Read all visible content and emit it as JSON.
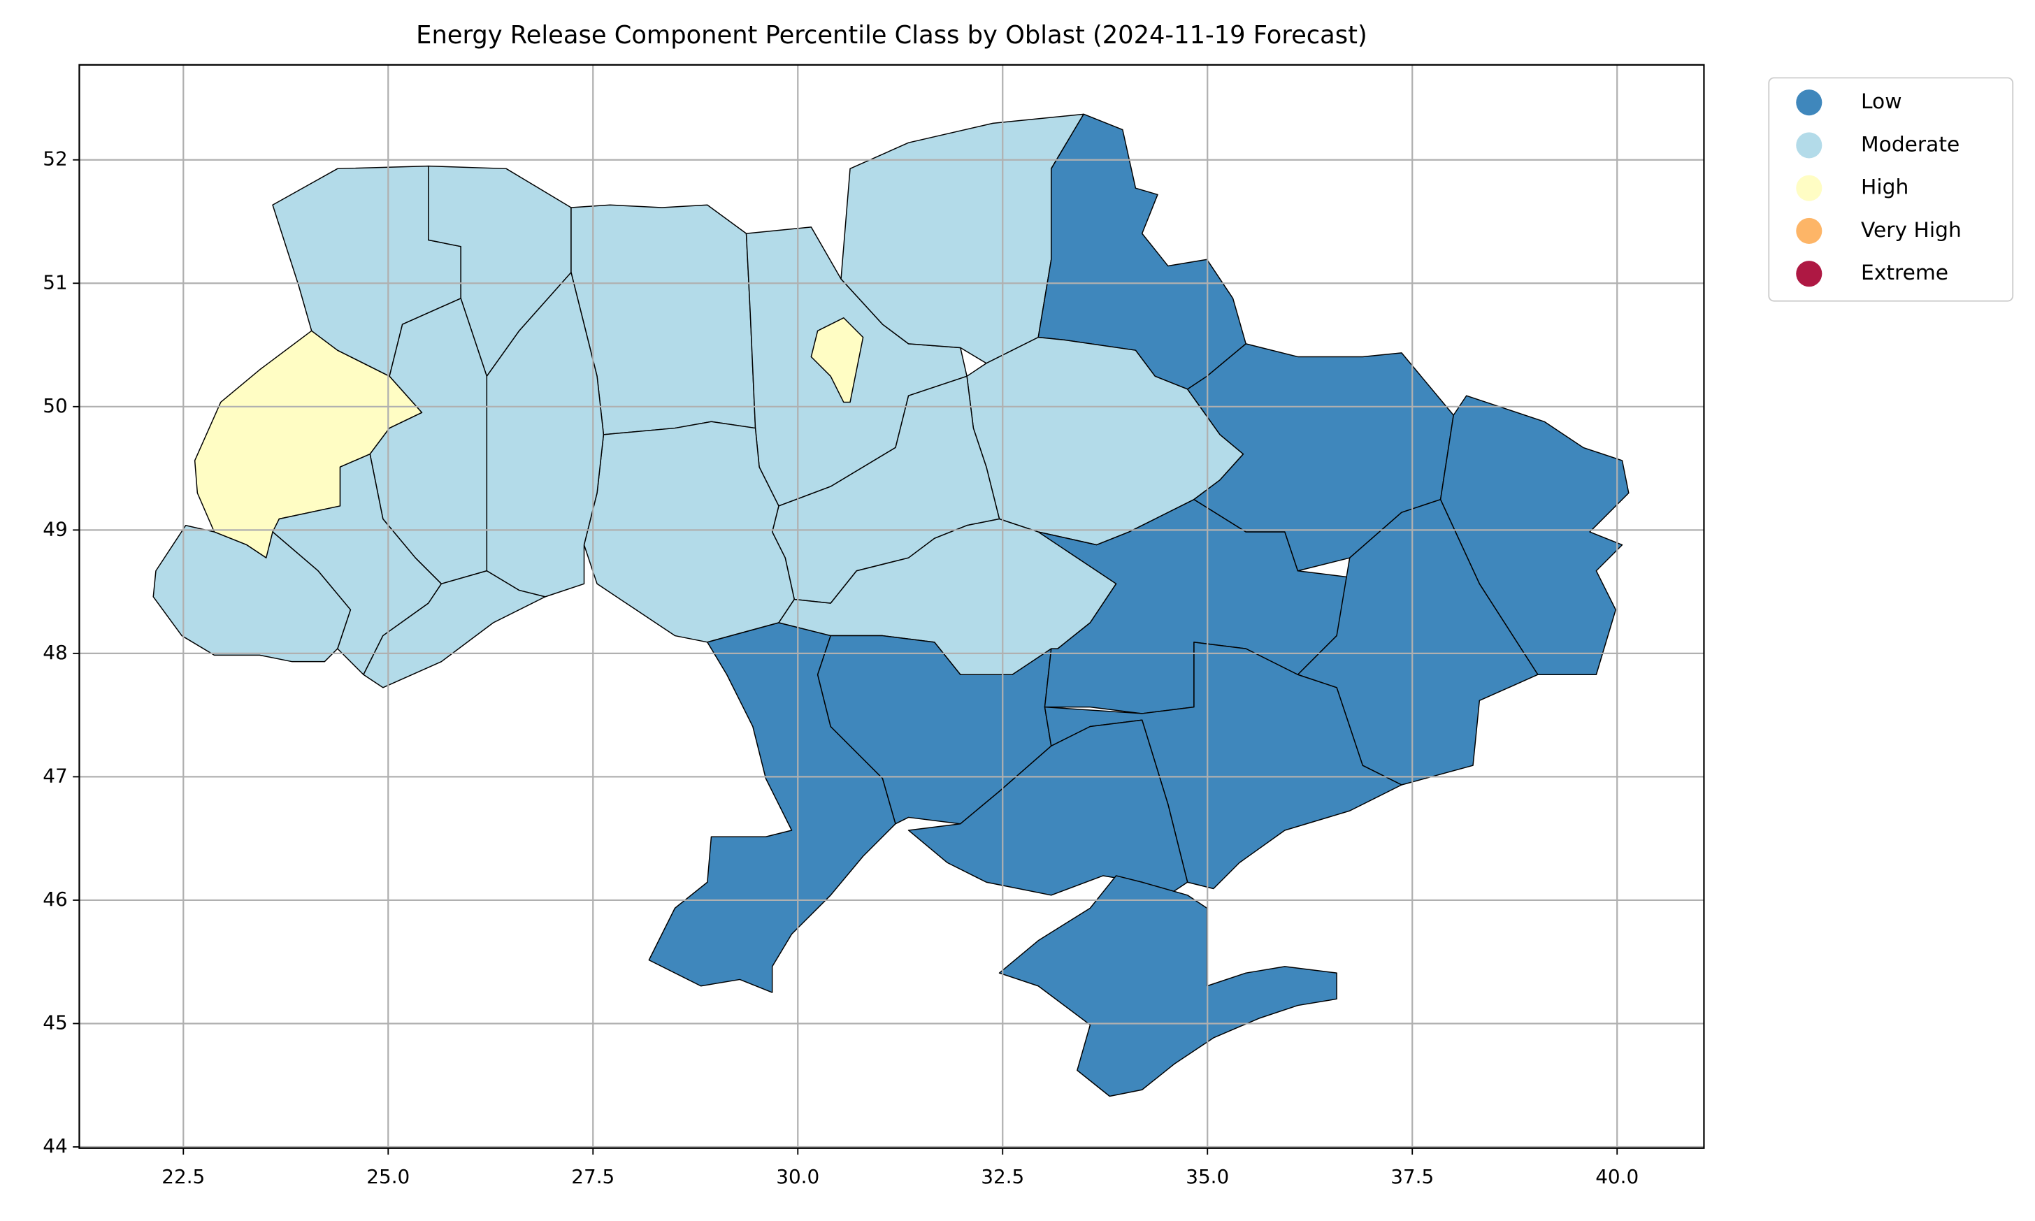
{
  "chart_data": {
    "type": "map",
    "title": "Energy Release Component Percentile Class by Oblast (2024-11-19 Forecast)",
    "xlim": [
      21.23,
      41.06
    ],
    "ylim": [
      43.99,
      52.77
    ],
    "xticks": [
      22.5,
      {
        "value": 25,
        "label": "25.0"
      },
      27.5,
      {
        "value": 30,
        "label": "30.0"
      },
      32.5,
      {
        "value": 35,
        "label": "35.0"
      },
      37.5,
      {
        "value": 40,
        "label": "40.0"
      }
    ],
    "yticks": [
      44,
      45,
      46,
      47,
      48,
      49,
      50,
      51,
      52
    ],
    "grid": true,
    "legend_position": "upper right outside",
    "series": [
      {
        "name": "Low",
        "color": "#3f87bc"
      },
      {
        "name": "Moderate",
        "color": "#b3dbe9"
      },
      {
        "name": "High",
        "color": "#fffdc4"
      },
      {
        "name": "Very High",
        "color": "#fdb567"
      },
      {
        "name": "Extreme",
        "color": "#ae1843"
      }
    ],
    "region_classes": [
      "High",
      "Moderate",
      "Moderate",
      "Moderate",
      "Moderate",
      "High",
      "Moderate",
      "Low",
      "Moderate",
      "Moderate",
      "Moderate",
      "Moderate",
      "Moderate",
      "Moderate",
      "Moderate",
      "Moderate",
      "Moderate",
      "Low",
      "Low",
      "Low",
      "Low",
      "Low",
      "Low",
      "Low",
      "Low",
      "Low"
    ]
  }
}
